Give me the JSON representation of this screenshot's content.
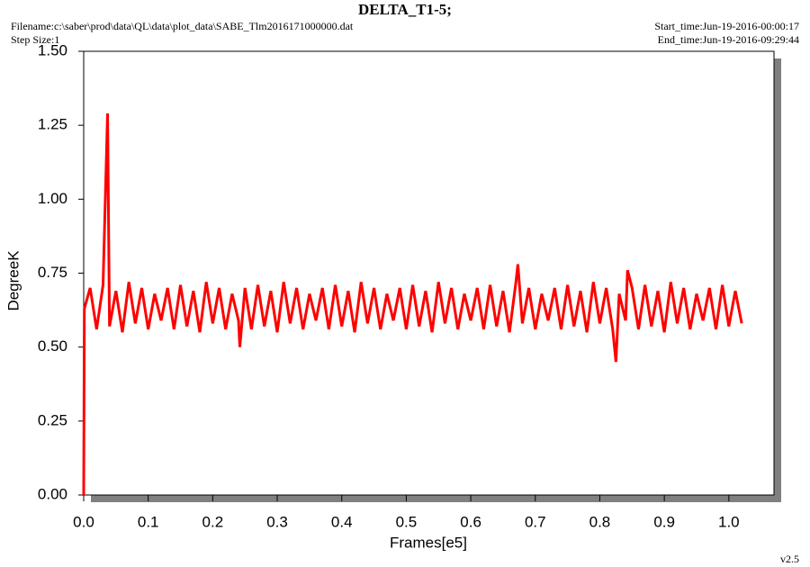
{
  "chart_data": {
    "type": "line",
    "title": "DELTA_T1-5;",
    "filename": "Filename:c:\\saber\\prod\\data\\QL\\data\\plot_data\\SABE_Tlm2016171000000.dat",
    "step_size": "Step Size:1",
    "start_time": "Start_time:Jun-19-2016-00:00:17",
    "end_time": "End_time:Jun-19-2016-09:29:44",
    "version": "v2.5",
    "xlabel": "Frames[e5]",
    "ylabel": "DegreeK",
    "color": "#ff0000",
    "x": [
      0,
      0.001,
      0.01,
      0.02,
      0.03,
      0.037,
      0.04,
      0.05,
      0.06,
      0.07,
      0.08,
      0.09,
      0.1,
      0.11,
      0.12,
      0.13,
      0.14,
      0.15,
      0.16,
      0.17,
      0.18,
      0.19,
      0.2,
      0.21,
      0.22,
      0.23,
      0.24,
      0.242,
      0.25,
      0.26,
      0.27,
      0.28,
      0.29,
      0.3,
      0.31,
      0.32,
      0.33,
      0.34,
      0.35,
      0.36,
      0.37,
      0.38,
      0.39,
      0.4,
      0.41,
      0.42,
      0.43,
      0.44,
      0.45,
      0.46,
      0.47,
      0.48,
      0.49,
      0.5,
      0.51,
      0.52,
      0.53,
      0.54,
      0.55,
      0.56,
      0.57,
      0.58,
      0.59,
      0.6,
      0.61,
      0.62,
      0.63,
      0.64,
      0.65,
      0.66,
      0.67,
      0.673,
      0.68,
      0.69,
      0.7,
      0.71,
      0.72,
      0.73,
      0.74,
      0.75,
      0.76,
      0.77,
      0.78,
      0.79,
      0.8,
      0.81,
      0.82,
      0.825,
      0.83,
      0.84,
      0.843,
      0.85,
      0.86,
      0.87,
      0.88,
      0.89,
      0.9,
      0.91,
      0.92,
      0.93,
      0.94,
      0.95,
      0.96,
      0.97,
      0.98,
      0.99,
      1.0,
      1.01,
      1.02
    ],
    "values": [
      0,
      0.63,
      0.7,
      0.56,
      0.71,
      1.29,
      0.57,
      0.69,
      0.55,
      0.72,
      0.58,
      0.7,
      0.56,
      0.68,
      0.59,
      0.7,
      0.56,
      0.71,
      0.57,
      0.69,
      0.55,
      0.72,
      0.58,
      0.7,
      0.56,
      0.68,
      0.59,
      0.5,
      0.7,
      0.56,
      0.71,
      0.57,
      0.69,
      0.55,
      0.72,
      0.58,
      0.7,
      0.56,
      0.68,
      0.59,
      0.7,
      0.56,
      0.71,
      0.57,
      0.69,
      0.55,
      0.72,
      0.58,
      0.7,
      0.56,
      0.68,
      0.59,
      0.7,
      0.56,
      0.71,
      0.57,
      0.69,
      0.55,
      0.72,
      0.58,
      0.7,
      0.56,
      0.68,
      0.59,
      0.7,
      0.56,
      0.71,
      0.57,
      0.69,
      0.55,
      0.72,
      0.78,
      0.58,
      0.7,
      0.56,
      0.68,
      0.59,
      0.7,
      0.56,
      0.71,
      0.57,
      0.69,
      0.55,
      0.72,
      0.58,
      0.7,
      0.56,
      0.45,
      0.68,
      0.59,
      0.76,
      0.7,
      0.56,
      0.71,
      0.57,
      0.69,
      0.55,
      0.72,
      0.58,
      0.7,
      0.56,
      0.68,
      0.59,
      0.7,
      0.56,
      0.71,
      0.57,
      0.69,
      0.58
    ],
    "xlim": [
      0,
      1.07
    ],
    "ylim": [
      0,
      1.5
    ],
    "xticks": [
      {
        "value": 0,
        "label": "0.0"
      },
      {
        "value": 0.1,
        "label": "0.1"
      },
      {
        "value": 0.2,
        "label": "0.2"
      },
      {
        "value": 0.3,
        "label": "0.3"
      },
      {
        "value": 0.4,
        "label": "0.4"
      },
      {
        "value": 0.5,
        "label": "0.5"
      },
      {
        "value": 0.6,
        "label": "0.6"
      },
      {
        "value": 0.7,
        "label": "0.7"
      },
      {
        "value": 0.8,
        "label": "0.8"
      },
      {
        "value": 0.9,
        "label": "0.9"
      },
      {
        "value": 1,
        "label": "1.0"
      }
    ],
    "yticks": [
      {
        "value": 0,
        "label": "0.00"
      },
      {
        "value": 0.25,
        "label": "0.25"
      },
      {
        "value": 0.5,
        "label": "0.50"
      },
      {
        "value": 0.75,
        "label": "0.75"
      },
      {
        "value": 1,
        "label": "1.00"
      },
      {
        "value": 1.25,
        "label": "1.25"
      },
      {
        "value": 1.5,
        "label": "1.50"
      }
    ]
  }
}
